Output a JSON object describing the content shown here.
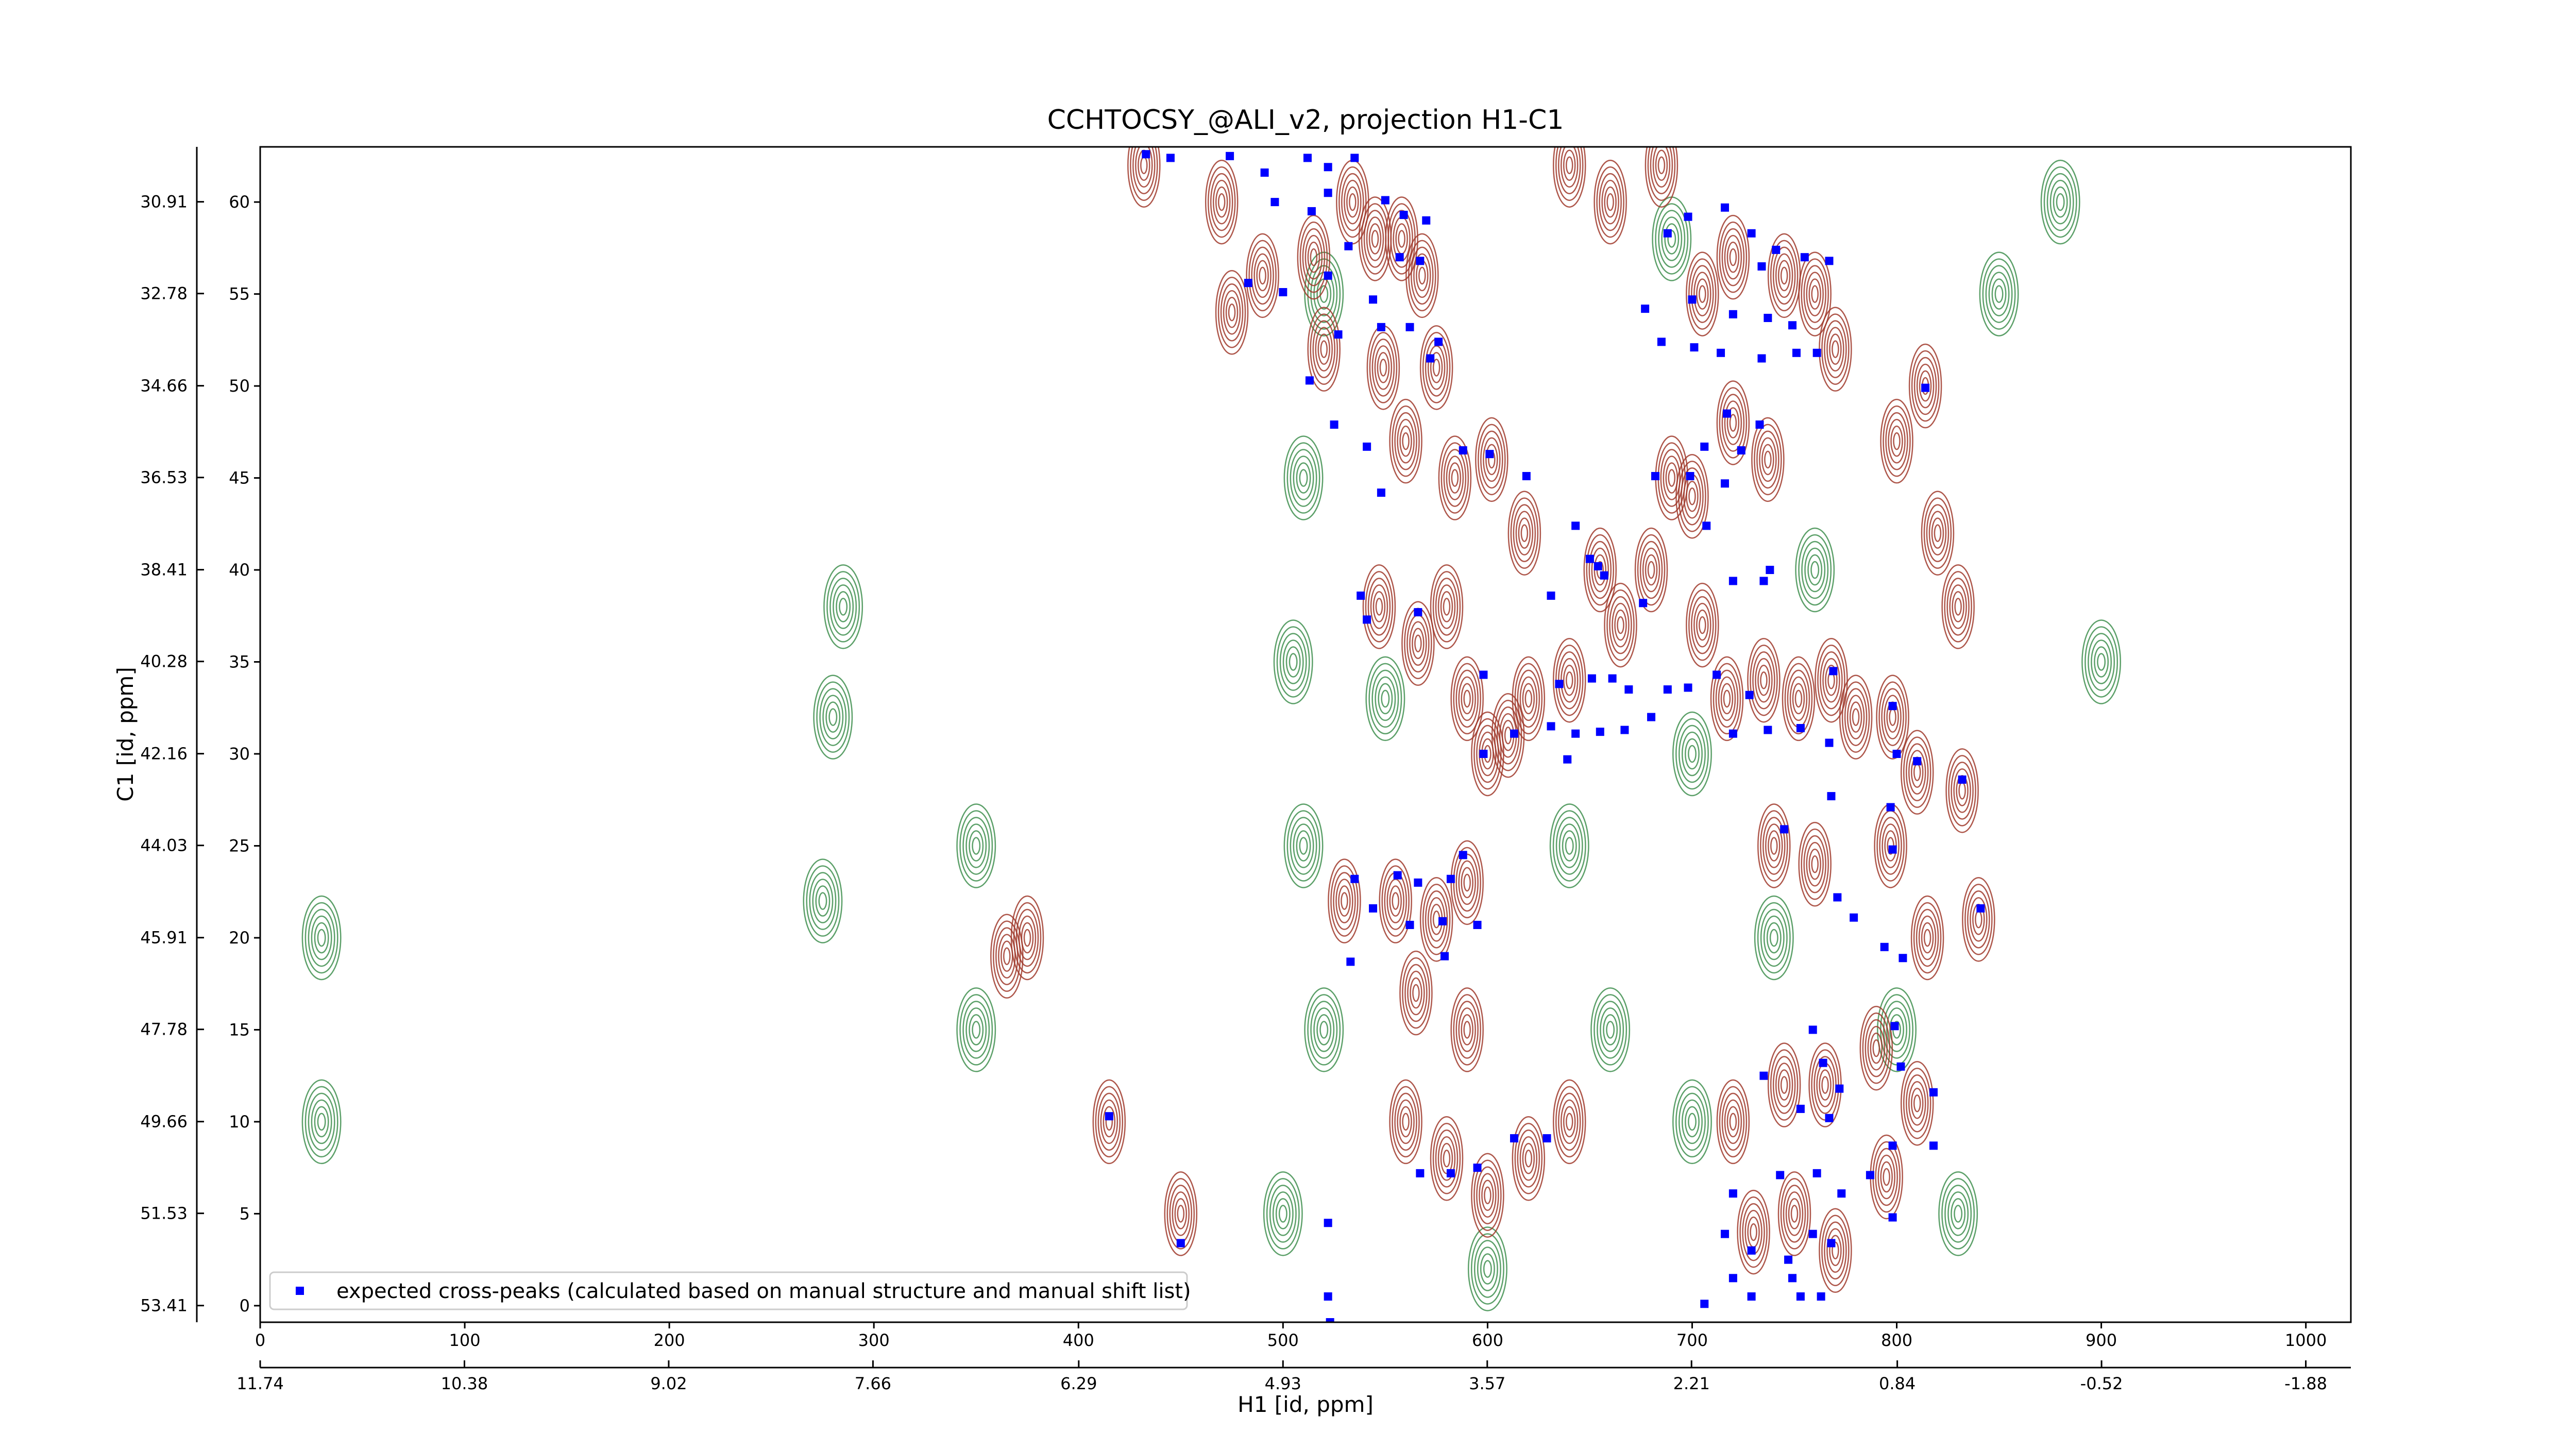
{
  "chart_data": {
    "type": "contour",
    "title": "CCHTOCSY_@ALI_v2, projection H1-C1",
    "x_label": "H1 [id, ppm]",
    "y_label": "C1 [id, ppm]",
    "xlim": [
      0,
      1022
    ],
    "ylim": [
      -0.9,
      63
    ],
    "xticks": [
      0,
      100,
      200,
      300,
      400,
      500,
      600,
      700,
      800,
      900,
      1000
    ],
    "yticks": [
      0,
      5,
      10,
      15,
      20,
      25,
      30,
      35,
      40,
      45,
      50,
      55,
      60
    ],
    "x2lim": [
      11.74,
      -2.18
    ],
    "x2ticks": [
      11.74,
      10.38,
      9.02,
      7.66,
      6.29,
      4.93,
      3.57,
      2.21,
      0.84,
      -0.52,
      -1.88
    ],
    "y2lim": [
      53.75,
      29.79
    ],
    "y2ticks": [
      30.91,
      32.78,
      34.66,
      36.53,
      38.41,
      40.28,
      42.16,
      44.03,
      45.91,
      47.78,
      49.66,
      51.53,
      53.41
    ],
    "legend_position": "lower left",
    "contours": {
      "positive": {
        "color": "#a0392c",
        "x": [
          432,
          470,
          475,
          490,
          515,
          520,
          534,
          545,
          558,
          568,
          549,
          560,
          575,
          584,
          602,
          618,
          547,
          566,
          580,
          590,
          600,
          610,
          620,
          640,
          655,
          665,
          680,
          690,
          700,
          720,
          737,
          705,
          720,
          745,
          760,
          770,
          705,
          717,
          735,
          752,
          768,
          780,
          798,
          810,
          832,
          740,
          760,
          797,
          815,
          840,
          530,
          555,
          575,
          590,
          565,
          590,
          560,
          580,
          600,
          620,
          640,
          720,
          745,
          765,
          790,
          810,
          730,
          750,
          770,
          795,
          450,
          415,
          375,
          365,
          800,
          814,
          820,
          830,
          685,
          660,
          640
        ],
        "y": [
          62,
          60,
          54,
          56,
          57,
          52,
          60,
          58,
          58,
          56,
          51,
          47,
          51,
          45,
          46,
          42,
          38,
          36,
          38,
          33,
          30,
          31,
          33,
          34,
          40,
          37,
          40,
          45,
          44,
          48,
          46,
          55,
          57,
          56,
          55,
          52,
          37,
          33,
          34,
          33,
          34,
          32,
          32,
          29,
          28,
          25,
          24,
          25,
          20,
          21,
          22,
          22,
          21,
          23,
          17,
          15,
          10,
          8,
          6,
          8,
          10,
          10,
          12,
          12,
          14,
          11,
          4,
          5,
          3,
          7,
          5,
          10,
          20,
          19,
          47,
          50,
          42,
          38,
          62,
          60,
          62
        ]
      },
      "negative": {
        "color": "#3f8f4f",
        "x": [
          510,
          505,
          510,
          520,
          500,
          280,
          285,
          275,
          350,
          350,
          520,
          640,
          660,
          700,
          700,
          740,
          760,
          800,
          830,
          850,
          880,
          900,
          690,
          550,
          600,
          30,
          30
        ],
        "y": [
          45,
          35,
          25,
          15,
          5,
          32,
          38,
          22,
          15,
          25,
          55,
          25,
          15,
          10,
          30,
          20,
          40,
          15,
          5,
          55,
          60,
          35,
          58,
          33,
          2,
          10,
          20
        ]
      }
    },
    "series": [
      {
        "name": "expected cross-peaks (calculated based on manual structure and manual shift list)",
        "color": "#0000ff",
        "x": [
          433,
          445,
          474,
          491,
          512,
          522,
          535,
          496,
          514,
          522,
          550,
          559,
          570,
          532,
          557,
          567,
          483,
          500,
          522,
          544,
          548,
          527,
          562,
          572,
          576,
          688,
          698,
          716,
          729,
          734,
          741,
          755,
          767,
          677,
          700,
          720,
          737,
          749,
          685,
          701,
          714,
          734,
          751,
          761,
          814,
          513,
          525,
          541,
          548,
          588,
          601,
          619,
          706,
          724,
          717,
          733,
          682,
          699,
          716,
          643,
          707,
          650,
          657,
          654,
          631,
          538,
          541,
          566,
          676,
          720,
          735,
          738,
          598,
          635,
          651,
          661,
          669,
          688,
          698,
          712,
          769,
          728,
          720,
          737,
          753,
          767,
          798,
          800,
          613,
          631,
          643,
          655,
          667,
          680,
          598,
          639,
          810,
          832,
          768,
          745,
          797,
          798,
          535,
          556,
          566,
          582,
          588,
          544,
          562,
          578,
          595,
          533,
          579,
          771,
          779,
          794,
          803,
          841,
          759,
          764,
          772,
          735,
          799,
          802,
          818,
          415,
          613,
          629,
          753,
          767,
          798,
          818,
          567,
          582,
          595,
          720,
          743,
          761,
          773,
          787,
          798,
          450,
          522,
          716,
          729,
          747,
          759,
          768,
          720,
          749,
          522,
          706,
          729,
          753,
          763,
          523
        ],
        "values": [
          62.6,
          62.4,
          62.5,
          61.6,
          62.4,
          61.9,
          62.4,
          60.0,
          59.5,
          60.5,
          60.1,
          59.3,
          59.0,
          57.6,
          57.0,
          56.8,
          55.6,
          55.1,
          56.0,
          54.7,
          53.2,
          52.8,
          53.2,
          51.5,
          52.4,
          58.3,
          59.2,
          59.7,
          58.3,
          56.5,
          57.4,
          57.0,
          56.8,
          54.2,
          54.7,
          53.9,
          53.7,
          53.3,
          52.4,
          52.1,
          51.8,
          51.5,
          51.8,
          51.8,
          49.9,
          50.3,
          47.9,
          46.7,
          44.2,
          46.5,
          46.3,
          45.1,
          46.7,
          46.5,
          48.5,
          47.9,
          45.1,
          45.1,
          44.7,
          42.4,
          42.4,
          40.6,
          39.7,
          40.2,
          38.6,
          38.6,
          37.3,
          37.7,
          38.2,
          39.4,
          39.4,
          40.0,
          34.3,
          33.8,
          34.1,
          34.1,
          33.5,
          33.5,
          33.6,
          34.3,
          34.5,
          33.2,
          31.1,
          31.3,
          31.4,
          30.6,
          32.6,
          30.0,
          31.1,
          31.5,
          31.1,
          31.2,
          31.3,
          32.0,
          30.0,
          29.7,
          29.6,
          28.6,
          27.7,
          25.9,
          27.1,
          24.8,
          23.2,
          23.4,
          23.0,
          23.2,
          24.5,
          21.6,
          20.7,
          20.9,
          20.7,
          18.7,
          19.0,
          22.2,
          21.1,
          19.5,
          18.9,
          21.6,
          15.0,
          13.2,
          11.8,
          12.5,
          15.2,
          13.0,
          11.6,
          10.3,
          9.1,
          9.1,
          10.7,
          10.2,
          8.7,
          8.7,
          7.2,
          7.2,
          7.5,
          6.1,
          7.1,
          7.2,
          6.1,
          7.1,
          4.8,
          3.4,
          4.5,
          3.9,
          3.0,
          2.5,
          3.9,
          3.4,
          1.5,
          1.5,
          0.5,
          0.1,
          0.5,
          0.5,
          0.5,
          -0.9
        ]
      }
    ]
  }
}
